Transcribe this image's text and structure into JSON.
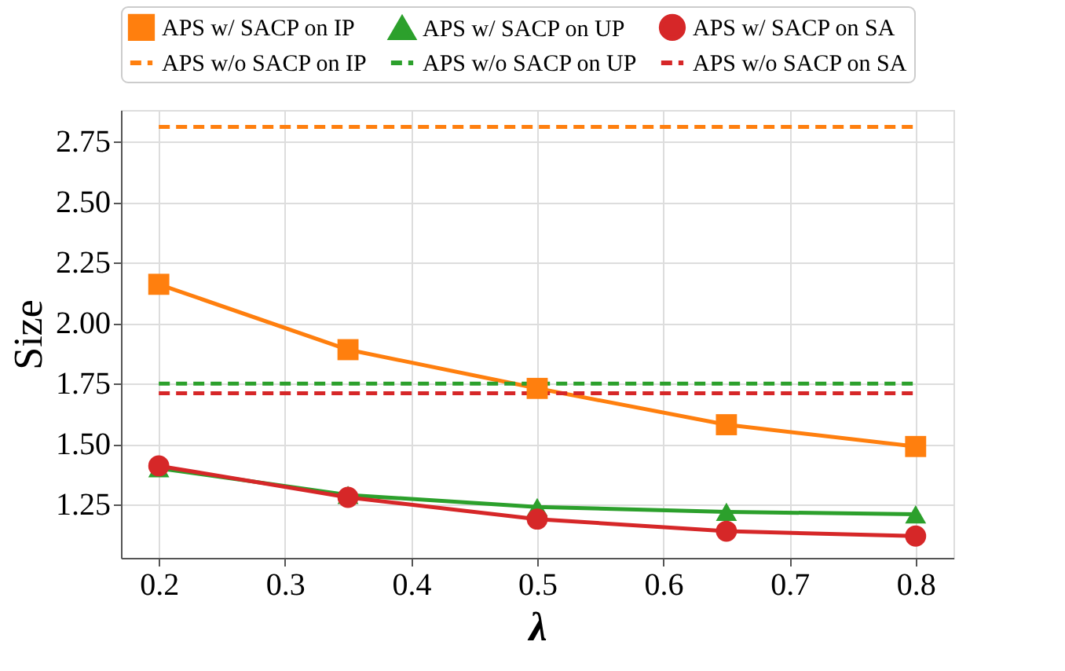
{
  "chart_data": {
    "type": "line",
    "xlabel": "λ",
    "ylabel": "Size",
    "x": [
      0.2,
      0.35,
      0.5,
      0.65,
      0.8
    ],
    "series": [
      {
        "name": "APS w/   SACP on IP",
        "color": "#ff7f0e",
        "marker": "square",
        "line_style": "solid",
        "values": [
          2.16,
          1.89,
          1.73,
          1.58,
          1.49
        ]
      },
      {
        "name": "APS w/o SACP on IP",
        "color": "#ff7f0e",
        "marker": "none",
        "line_style": "dashed",
        "values": [
          2.81,
          2.81,
          2.81,
          2.81,
          2.81
        ]
      },
      {
        "name": "APS w/   SACP on UP",
        "color": "#2ca02c",
        "marker": "triangle",
        "line_style": "solid",
        "values": [
          1.4,
          1.29,
          1.24,
          1.22,
          1.21
        ]
      },
      {
        "name": "APS w/o SACP on UP",
        "color": "#2ca02c",
        "marker": "none",
        "line_style": "dashed",
        "values": [
          1.75,
          1.75,
          1.75,
          1.75,
          1.75
        ]
      },
      {
        "name": "APS w/   SACP on SA",
        "color": "#d62728",
        "marker": "circle",
        "line_style": "solid",
        "values": [
          1.41,
          1.28,
          1.19,
          1.14,
          1.12
        ]
      },
      {
        "name": "APS w/o SACP on SA",
        "color": "#d62728",
        "marker": "none",
        "line_style": "dashed",
        "values": [
          1.71,
          1.71,
          1.71,
          1.71,
          1.71
        ]
      }
    ],
    "xlim": [
      0.17,
      0.83
    ],
    "xticks": [
      0.2,
      0.3,
      0.4,
      0.5,
      0.6,
      0.7,
      0.8
    ],
    "ylim": [
      1.03,
      2.88
    ],
    "yticks": [
      1.25,
      {
        "value": 1.5,
        "label": "1.50"
      },
      1.75,
      {
        "value": 2.0,
        "label": "2.00"
      },
      2.25,
      {
        "value": 2.5,
        "label": "2.50"
      },
      2.75
    ],
    "grid": true,
    "legend": "top"
  }
}
